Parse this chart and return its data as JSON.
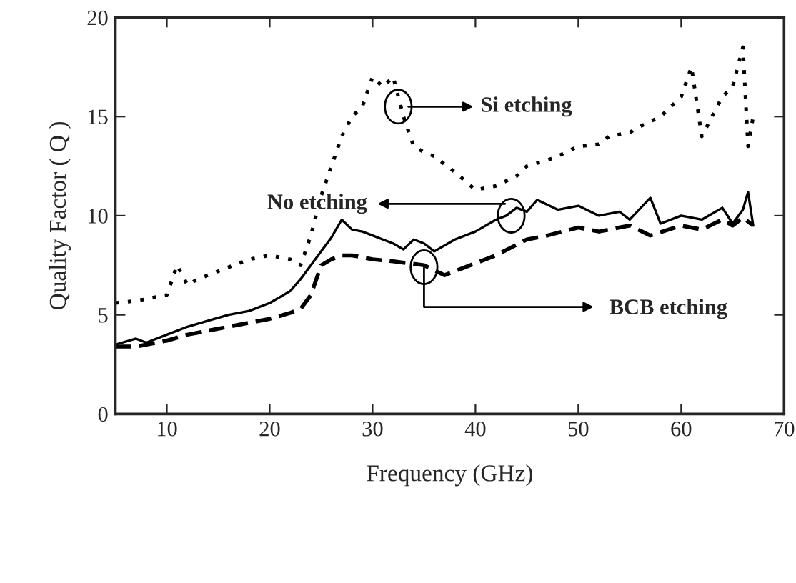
{
  "chart_data": {
    "type": "line",
    "xlabel": "Frequency (GHz)",
    "ylabel": "Quality Factor ( Q )",
    "xlim": [
      5,
      70
    ],
    "xticks": [
      10,
      20,
      30,
      40,
      50,
      60,
      70
    ],
    "ylim": [
      0,
      20
    ],
    "yticks": [
      0,
      5,
      10,
      15,
      20
    ],
    "grid": false,
    "series": [
      {
        "color": "#000000",
        "line_style": "dotted",
        "x": [
          5,
          7,
          9,
          10,
          11,
          12,
          13,
          15,
          17,
          18,
          20,
          22,
          23,
          24,
          25,
          26,
          27,
          28,
          29,
          30,
          31,
          32,
          33,
          34,
          35,
          36,
          38,
          40,
          42,
          44,
          45,
          47,
          48,
          50,
          52,
          53,
          55,
          56,
          58,
          59,
          60,
          61,
          62,
          63,
          64,
          65,
          66,
          66.5,
          67
        ],
        "values": [
          5.6,
          5.7,
          5.9,
          6.0,
          7.5,
          6.5,
          6.8,
          7.2,
          7.6,
          7.8,
          8.0,
          7.8,
          7.5,
          9.0,
          11.0,
          12.5,
          14.0,
          15.0,
          15.5,
          17.0,
          16.5,
          17.0,
          15.0,
          13.5,
          13.2,
          13.0,
          12.2,
          11.3,
          11.5,
          12.0,
          12.5,
          12.8,
          13.0,
          13.5,
          13.6,
          14.0,
          14.2,
          14.5,
          15.0,
          15.5,
          16.0,
          17.5,
          14.0,
          15.0,
          16.0,
          16.5,
          18.5,
          13.5,
          15.0
        ]
      },
      {
        "color": "#000000",
        "line_style": "solid",
        "x": [
          5,
          7,
          8,
          10,
          12,
          14,
          16,
          18,
          20,
          22,
          23,
          24,
          25,
          26,
          27,
          28,
          29,
          30,
          31,
          32,
          33,
          34,
          35,
          36,
          38,
          40,
          42,
          43,
          44,
          45,
          46,
          48,
          50,
          52,
          54,
          55,
          57,
          58,
          60,
          62,
          64,
          65,
          66,
          66.5,
          67
        ],
        "values": [
          3.5,
          3.8,
          3.6,
          4.0,
          4.4,
          4.7,
          5.0,
          5.2,
          5.6,
          6.2,
          6.8,
          7.5,
          8.2,
          8.9,
          9.8,
          9.3,
          9.2,
          9.0,
          8.8,
          8.6,
          8.3,
          8.8,
          8.6,
          8.2,
          8.8,
          9.2,
          9.8,
          10.0,
          10.4,
          10.2,
          10.8,
          10.3,
          10.5,
          10.0,
          10.2,
          9.8,
          10.9,
          9.6,
          10.0,
          9.8,
          10.4,
          9.6,
          10.3,
          11.2,
          9.5
        ]
      },
      {
        "color": "#000000",
        "line_style": "dashed",
        "x": [
          5,
          7,
          10,
          12,
          15,
          18,
          20,
          22,
          23,
          24,
          25,
          26,
          27,
          28,
          30,
          32,
          35,
          37,
          40,
          42,
          45,
          47,
          50,
          52,
          55,
          57,
          60,
          62,
          64,
          65,
          66,
          67
        ],
        "values": [
          3.4,
          3.4,
          3.7,
          4.0,
          4.3,
          4.6,
          4.8,
          5.1,
          5.3,
          6.0,
          7.5,
          7.8,
          8.0,
          8.0,
          7.8,
          7.7,
          7.5,
          7.0,
          7.6,
          8.0,
          8.8,
          9.0,
          9.4,
          9.2,
          9.5,
          9.0,
          9.5,
          9.3,
          9.8,
          9.5,
          9.9,
          9.5
        ]
      }
    ],
    "annotations": [
      "Si etching",
      "No etching",
      {
        "text": "BCB etching",
        "x": 35.0,
        "y": 7.4
      }
    ]
  }
}
